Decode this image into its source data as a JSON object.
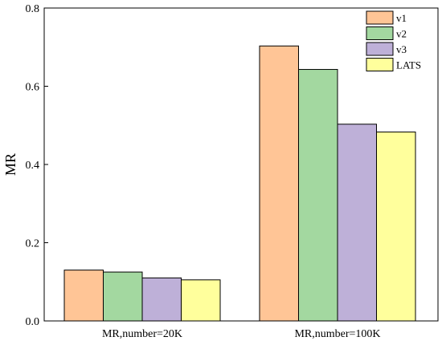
{
  "chart_data": {
    "type": "bar",
    "title": "",
    "xlabel": "",
    "ylabel": "MR",
    "ylim": [
      0,
      0.8
    ],
    "yticks": [
      0.0,
      0.2,
      0.4,
      0.6,
      0.8
    ],
    "ytick_labels": [
      "0.0",
      "0.2",
      "0.4",
      "0.6",
      "0.8"
    ],
    "categories": [
      "MR,number=20K",
      "MR,number=100K"
    ],
    "series": [
      {
        "name": "v1",
        "values": [
          0.13,
          0.703
        ],
        "color": "#FFC596"
      },
      {
        "name": "v2",
        "values": [
          0.125,
          0.643
        ],
        "color": "#A3D8A0"
      },
      {
        "name": "v3",
        "values": [
          0.11,
          0.503
        ],
        "color": "#BEB0D8"
      },
      {
        "name": "LATS",
        "values": [
          0.105,
          0.483
        ],
        "color": "#FFFF9C"
      }
    ],
    "grid": false,
    "legend_position": "top-right"
  }
}
